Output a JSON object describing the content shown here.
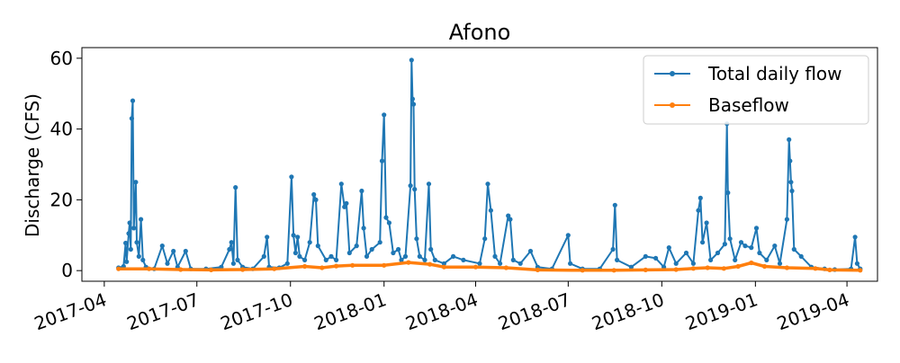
{
  "chart_data": {
    "type": "line",
    "title": "Afono",
    "xlabel": "",
    "ylabel": "Discharge (CFS)",
    "xlim": [
      "2017-03-10",
      "2019-05-01"
    ],
    "ylim": [
      -3,
      63
    ],
    "yticks": [
      0,
      20,
      40,
      60
    ],
    "xticks": [
      "2017-04",
      "2017-07",
      "2017-10",
      "2018-01",
      "2018-04",
      "2018-07",
      "2018-10",
      "2019-01",
      "2019-04"
    ],
    "grid": false,
    "legend_position": "upper right",
    "series": [
      {
        "name": "Total daily flow",
        "color": "#1f77b4",
        "marker": "circle",
        "points": [
          [
            "2017-04-15",
            0.8
          ],
          [
            "2017-04-20",
            1.2
          ],
          [
            "2017-04-22",
            7.8
          ],
          [
            "2017-04-23",
            2.5
          ],
          [
            "2017-04-25",
            10.5
          ],
          [
            "2017-04-26",
            13.5
          ],
          [
            "2017-04-27",
            6
          ],
          [
            "2017-04-28",
            43
          ],
          [
            "2017-04-29",
            48
          ],
          [
            "2017-04-30",
            12
          ],
          [
            "2017-05-02",
            25
          ],
          [
            "2017-05-03",
            8
          ],
          [
            "2017-05-05",
            4
          ],
          [
            "2017-05-07",
            14.5
          ],
          [
            "2017-05-09",
            3
          ],
          [
            "2017-05-12",
            1
          ],
          [
            "2017-05-20",
            0.5
          ],
          [
            "2017-05-28",
            7
          ],
          [
            "2017-06-02",
            2
          ],
          [
            "2017-06-08",
            5.5
          ],
          [
            "2017-06-12",
            1
          ],
          [
            "2017-06-20",
            5.5
          ],
          [
            "2017-06-25",
            0.5
          ],
          [
            "2017-07-10",
            0.5
          ],
          [
            "2017-07-25",
            1
          ],
          [
            "2017-08-02",
            6
          ],
          [
            "2017-08-04",
            8
          ],
          [
            "2017-08-06",
            2
          ],
          [
            "2017-08-08",
            23.5
          ],
          [
            "2017-08-10",
            3
          ],
          [
            "2017-08-15",
            1
          ],
          [
            "2017-08-25",
            0.5
          ],
          [
            "2017-09-05",
            4
          ],
          [
            "2017-09-08",
            9.5
          ],
          [
            "2017-09-10",
            1
          ],
          [
            "2017-09-20",
            0.8
          ],
          [
            "2017-09-28",
            2
          ],
          [
            "2017-10-02",
            26.5
          ],
          [
            "2017-10-04",
            10
          ],
          [
            "2017-10-06",
            5
          ],
          [
            "2017-10-08",
            9.5
          ],
          [
            "2017-10-10",
            4
          ],
          [
            "2017-10-15",
            3
          ],
          [
            "2017-10-20",
            8
          ],
          [
            "2017-10-24",
            21.5
          ],
          [
            "2017-10-26",
            20
          ],
          [
            "2017-10-28",
            7
          ],
          [
            "2017-11-05",
            3
          ],
          [
            "2017-11-10",
            4
          ],
          [
            "2017-11-15",
            3
          ],
          [
            "2017-11-20",
            24.5
          ],
          [
            "2017-11-23",
            18
          ],
          [
            "2017-11-25",
            19
          ],
          [
            "2017-11-28",
            5
          ],
          [
            "2017-12-05",
            7
          ],
          [
            "2017-12-10",
            22.5
          ],
          [
            "2017-12-12",
            12
          ],
          [
            "2017-12-15",
            4
          ],
          [
            "2017-12-20",
            6
          ],
          [
            "2017-12-28",
            8
          ],
          [
            "2017-12-30",
            31
          ],
          [
            "2018-01-01",
            44
          ],
          [
            "2018-01-03",
            15
          ],
          [
            "2018-01-06",
            13.5
          ],
          [
            "2018-01-10",
            5
          ],
          [
            "2018-01-15",
            6
          ],
          [
            "2018-01-18",
            3
          ],
          [
            "2018-01-22",
            4
          ],
          [
            "2018-01-27",
            24
          ],
          [
            "2018-01-28",
            59.5
          ],
          [
            "2018-01-29",
            48.5
          ],
          [
            "2018-01-30",
            47
          ],
          [
            "2018-01-31",
            23
          ],
          [
            "2018-02-02",
            9
          ],
          [
            "2018-02-05",
            4
          ],
          [
            "2018-02-10",
            3
          ],
          [
            "2018-02-14",
            24.5
          ],
          [
            "2018-02-16",
            6
          ],
          [
            "2018-02-20",
            3
          ],
          [
            "2018-03-01",
            2
          ],
          [
            "2018-03-10",
            4
          ],
          [
            "2018-03-20",
            3
          ],
          [
            "2018-04-05",
            2
          ],
          [
            "2018-04-10",
            9
          ],
          [
            "2018-04-13",
            24.5
          ],
          [
            "2018-04-16",
            17
          ],
          [
            "2018-04-20",
            4
          ],
          [
            "2018-04-25",
            2
          ],
          [
            "2018-05-03",
            15.5
          ],
          [
            "2018-05-05",
            14.5
          ],
          [
            "2018-05-08",
            3
          ],
          [
            "2018-05-15",
            2
          ],
          [
            "2018-05-25",
            5.5
          ],
          [
            "2018-06-01",
            1
          ],
          [
            "2018-06-15",
            0.5
          ],
          [
            "2018-07-01",
            10
          ],
          [
            "2018-07-03",
            2
          ],
          [
            "2018-07-15",
            0.5
          ],
          [
            "2018-08-01",
            0.5
          ],
          [
            "2018-08-14",
            6
          ],
          [
            "2018-08-16",
            18.5
          ],
          [
            "2018-08-18",
            3
          ],
          [
            "2018-09-01",
            1
          ],
          [
            "2018-09-15",
            4
          ],
          [
            "2018-09-25",
            3.5
          ],
          [
            "2018-10-03",
            1
          ],
          [
            "2018-10-08",
            6.5
          ],
          [
            "2018-10-15",
            2
          ],
          [
            "2018-10-25",
            5
          ],
          [
            "2018-11-01",
            2
          ],
          [
            "2018-11-06",
            17
          ],
          [
            "2018-11-08",
            20.5
          ],
          [
            "2018-11-10",
            8
          ],
          [
            "2018-11-14",
            13.5
          ],
          [
            "2018-11-18",
            3
          ],
          [
            "2018-11-25",
            5
          ],
          [
            "2018-12-02",
            7.5
          ],
          [
            "2018-12-04",
            41.5
          ],
          [
            "2018-12-05",
            22
          ],
          [
            "2018-12-07",
            9
          ],
          [
            "2018-12-12",
            3
          ],
          [
            "2018-12-18",
            8
          ],
          [
            "2018-12-22",
            7
          ],
          [
            "2018-12-28",
            6.5
          ],
          [
            "2019-01-02",
            12
          ],
          [
            "2019-01-05",
            5
          ],
          [
            "2019-01-12",
            3
          ],
          [
            "2019-01-20",
            7
          ],
          [
            "2019-01-25",
            2
          ],
          [
            "2019-02-01",
            14.5
          ],
          [
            "2019-02-03",
            37
          ],
          [
            "2019-02-04",
            31
          ],
          [
            "2019-02-05",
            25
          ],
          [
            "2019-02-06",
            22.5
          ],
          [
            "2019-02-08",
            6
          ],
          [
            "2019-02-15",
            4
          ],
          [
            "2019-02-25",
            1
          ],
          [
            "2019-03-10",
            0.5
          ],
          [
            "2019-03-20",
            0.3
          ],
          [
            "2019-04-05",
            0.5
          ],
          [
            "2019-04-09",
            9.5
          ],
          [
            "2019-04-11",
            2
          ],
          [
            "2019-04-14",
            0.5
          ]
        ]
      },
      {
        "name": "Baseflow",
        "color": "#ff7f0e",
        "marker": "circle",
        "points": [
          [
            "2017-04-15",
            0.5
          ],
          [
            "2017-05-15",
            0.5
          ],
          [
            "2017-06-15",
            0.3
          ],
          [
            "2017-07-15",
            0.2
          ],
          [
            "2017-08-15",
            0.3
          ],
          [
            "2017-09-15",
            0.5
          ],
          [
            "2017-10-15",
            1.2
          ],
          [
            "2017-11-01",
            0.8
          ],
          [
            "2017-11-15",
            1.3
          ],
          [
            "2017-12-01",
            1.5
          ],
          [
            "2018-01-01",
            1.5
          ],
          [
            "2018-01-25",
            2.3
          ],
          [
            "2018-02-15",
            1.8
          ],
          [
            "2018-03-01",
            1
          ],
          [
            "2018-04-01",
            1
          ],
          [
            "2018-05-01",
            0.8
          ],
          [
            "2018-06-01",
            0.2
          ],
          [
            "2018-07-15",
            0.1
          ],
          [
            "2018-08-15",
            0.1
          ],
          [
            "2018-09-15",
            0.2
          ],
          [
            "2018-10-15",
            0.3
          ],
          [
            "2018-11-01",
            0.6
          ],
          [
            "2018-11-15",
            0.8
          ],
          [
            "2018-12-01",
            0.6
          ],
          [
            "2018-12-15",
            1.2
          ],
          [
            "2018-12-28",
            2.2
          ],
          [
            "2019-01-10",
            1.2
          ],
          [
            "2019-02-01",
            0.8
          ],
          [
            "2019-03-01",
            0.6
          ],
          [
            "2019-03-15",
            0.2
          ],
          [
            "2019-04-14",
            0.1
          ]
        ]
      }
    ]
  }
}
